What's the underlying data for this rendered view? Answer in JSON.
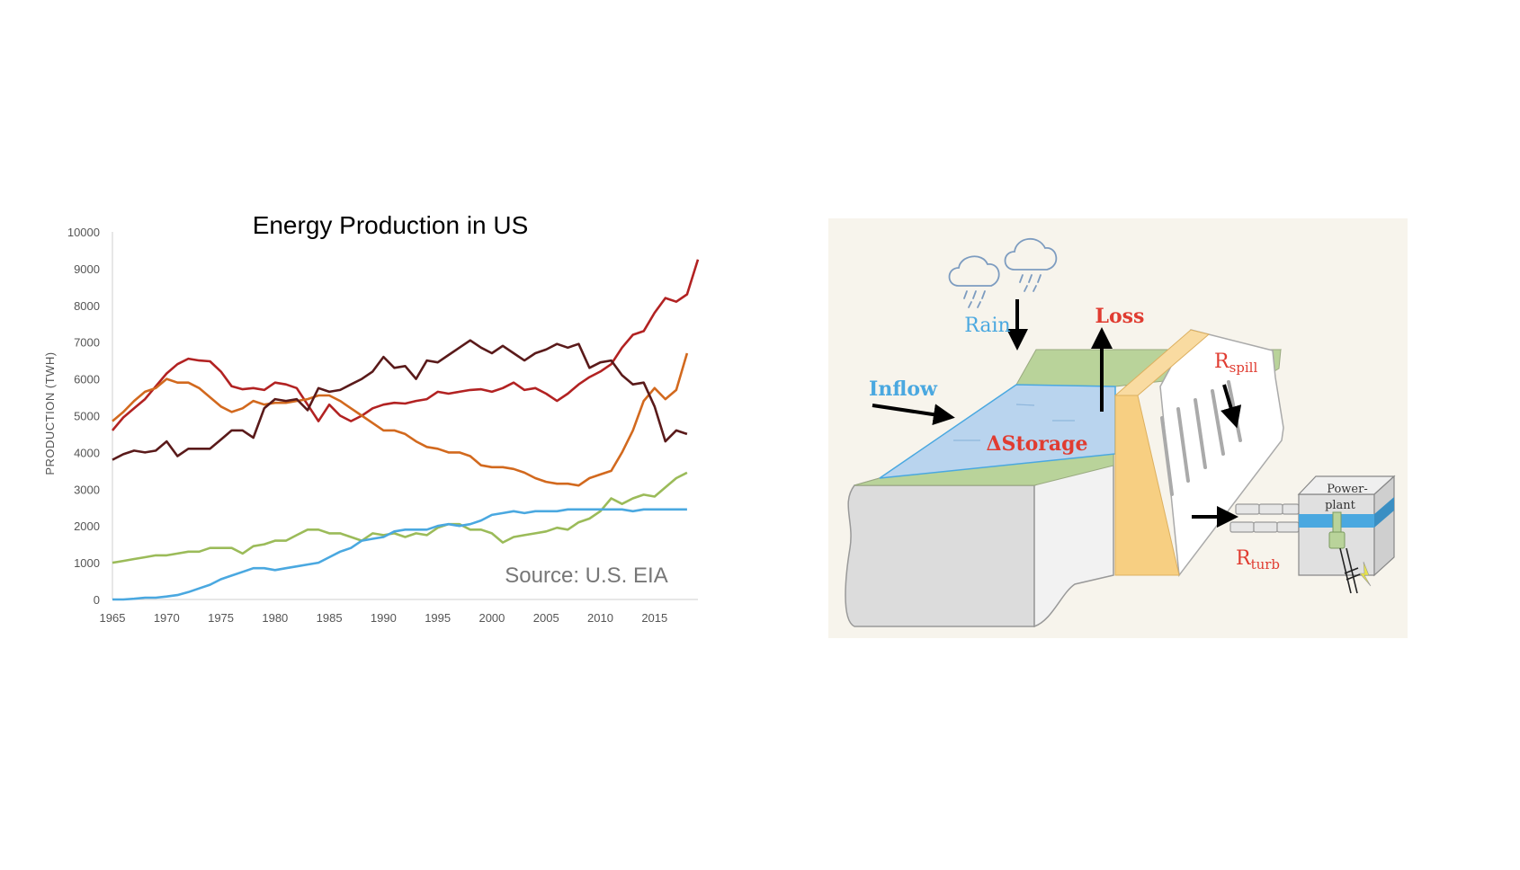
{
  "chart_data": {
    "type": "line",
    "title": "Energy Production in US",
    "ylabel": "PRODUCTION (TWH)",
    "xlabel": "",
    "source_note": "Source: U.S. EIA",
    "xlim": [
      1965,
      2018
    ],
    "ylim": [
      0,
      10000
    ],
    "x_ticks": [
      "1965",
      "1970",
      "1975",
      "1980",
      "1985",
      "1990",
      "1995",
      "2000",
      "2005",
      "2010",
      "2015"
    ],
    "y_ticks": [
      "0",
      "1000",
      "2000",
      "3000",
      "4000",
      "5000",
      "6000",
      "7000",
      "8000",
      "9000",
      "10000"
    ],
    "grid": false,
    "series": [
      {
        "color": "#b22222",
        "points": [
          [
            1965,
            4600
          ],
          [
            1966,
            4950
          ],
          [
            1967,
            5200
          ],
          [
            1968,
            5450
          ],
          [
            1969,
            5800
          ],
          [
            1970,
            6150
          ],
          [
            1971,
            6400
          ],
          [
            1972,
            6550
          ],
          [
            1973,
            6500
          ],
          [
            1974,
            6480
          ],
          [
            1975,
            6200
          ],
          [
            1976,
            5800
          ],
          [
            1977,
            5720
          ],
          [
            1978,
            5750
          ],
          [
            1979,
            5700
          ],
          [
            1980,
            5900
          ],
          [
            1981,
            5850
          ],
          [
            1982,
            5750
          ],
          [
            1983,
            5300
          ],
          [
            1984,
            4850
          ],
          [
            1985,
            5300
          ],
          [
            1986,
            5000
          ],
          [
            1987,
            4850
          ],
          [
            1988,
            5000
          ],
          [
            1989,
            5200
          ],
          [
            1990,
            5300
          ],
          [
            1991,
            5350
          ],
          [
            1992,
            5330
          ],
          [
            1993,
            5400
          ],
          [
            1994,
            5450
          ],
          [
            1995,
            5650
          ],
          [
            1996,
            5600
          ],
          [
            1997,
            5650
          ],
          [
            1998,
            5700
          ],
          [
            1999,
            5720
          ],
          [
            2000,
            5650
          ],
          [
            2001,
            5750
          ],
          [
            2002,
            5900
          ],
          [
            2003,
            5700
          ],
          [
            2004,
            5750
          ],
          [
            2005,
            5600
          ],
          [
            2006,
            5400
          ],
          [
            2007,
            5600
          ],
          [
            2008,
            5850
          ],
          [
            2009,
            6050
          ],
          [
            2010,
            6200
          ],
          [
            2011,
            6400
          ],
          [
            2012,
            6850
          ],
          [
            2013,
            7200
          ],
          [
            2014,
            7300
          ],
          [
            2015,
            7800
          ],
          [
            2016,
            8200
          ],
          [
            2017,
            8100
          ],
          [
            2018,
            8300
          ],
          [
            2019,
            9250
          ]
        ]
      },
      {
        "color": "#d2691e",
        "points": [
          [
            1965,
            4850
          ],
          [
            1966,
            5100
          ],
          [
            1967,
            5400
          ],
          [
            1968,
            5650
          ],
          [
            1969,
            5750
          ],
          [
            1970,
            6000
          ],
          [
            1971,
            5900
          ],
          [
            1972,
            5900
          ],
          [
            1973,
            5750
          ],
          [
            1974,
            5500
          ],
          [
            1975,
            5250
          ],
          [
            1976,
            5100
          ],
          [
            1977,
            5200
          ],
          [
            1978,
            5400
          ],
          [
            1979,
            5300
          ],
          [
            1980,
            5350
          ],
          [
            1981,
            5350
          ],
          [
            1982,
            5400
          ],
          [
            1983,
            5450
          ],
          [
            1984,
            5550
          ],
          [
            1985,
            5550
          ],
          [
            1986,
            5400
          ],
          [
            1987,
            5200
          ],
          [
            1988,
            5000
          ],
          [
            1989,
            4800
          ],
          [
            1990,
            4600
          ],
          [
            1991,
            4600
          ],
          [
            1992,
            4500
          ],
          [
            1993,
            4300
          ],
          [
            1994,
            4150
          ],
          [
            1995,
            4100
          ],
          [
            1996,
            4000
          ],
          [
            1997,
            4000
          ],
          [
            1998,
            3900
          ],
          [
            1999,
            3650
          ],
          [
            2000,
            3600
          ],
          [
            2001,
            3600
          ],
          [
            2002,
            3550
          ],
          [
            2003,
            3450
          ],
          [
            2004,
            3300
          ],
          [
            2005,
            3200
          ],
          [
            2006,
            3150
          ],
          [
            2007,
            3150
          ],
          [
            2008,
            3100
          ],
          [
            2009,
            3300
          ],
          [
            2010,
            3400
          ],
          [
            2011,
            3500
          ],
          [
            2012,
            4000
          ],
          [
            2013,
            4600
          ],
          [
            2014,
            5400
          ],
          [
            2015,
            5750
          ],
          [
            2016,
            5450
          ],
          [
            2017,
            5700
          ],
          [
            2018,
            6700
          ]
        ]
      },
      {
        "color": "#5a1a1a",
        "points": [
          [
            1965,
            3800
          ],
          [
            1966,
            3950
          ],
          [
            1967,
            4050
          ],
          [
            1968,
            4000
          ],
          [
            1969,
            4050
          ],
          [
            1970,
            4300
          ],
          [
            1971,
            3900
          ],
          [
            1972,
            4100
          ],
          [
            1973,
            4100
          ],
          [
            1974,
            4100
          ],
          [
            1975,
            4350
          ],
          [
            1976,
            4600
          ],
          [
            1977,
            4600
          ],
          [
            1978,
            4400
          ],
          [
            1979,
            5200
          ],
          [
            1980,
            5450
          ],
          [
            1981,
            5400
          ],
          [
            1982,
            5450
          ],
          [
            1983,
            5150
          ],
          [
            1984,
            5750
          ],
          [
            1985,
            5650
          ],
          [
            1986,
            5700
          ],
          [
            1987,
            5850
          ],
          [
            1988,
            6000
          ],
          [
            1989,
            6200
          ],
          [
            1990,
            6600
          ],
          [
            1991,
            6300
          ],
          [
            1992,
            6350
          ],
          [
            1993,
            6000
          ],
          [
            1994,
            6500
          ],
          [
            1995,
            6450
          ],
          [
            1996,
            6650
          ],
          [
            1997,
            6850
          ],
          [
            1998,
            7050
          ],
          [
            1999,
            6850
          ],
          [
            2000,
            6700
          ],
          [
            2001,
            6900
          ],
          [
            2002,
            6700
          ],
          [
            2003,
            6500
          ],
          [
            2004,
            6700
          ],
          [
            2005,
            6800
          ],
          [
            2006,
            6950
          ],
          [
            2007,
            6850
          ],
          [
            2008,
            6950
          ],
          [
            2009,
            6300
          ],
          [
            2010,
            6450
          ],
          [
            2011,
            6500
          ],
          [
            2012,
            6100
          ],
          [
            2013,
            5850
          ],
          [
            2014,
            5900
          ],
          [
            2015,
            5250
          ],
          [
            2016,
            4300
          ],
          [
            2017,
            4600
          ],
          [
            2018,
            4500
          ]
        ]
      },
      {
        "color": "#9bbb59",
        "points": [
          [
            1965,
            1000
          ],
          [
            1966,
            1050
          ],
          [
            1967,
            1100
          ],
          [
            1968,
            1150
          ],
          [
            1969,
            1200
          ],
          [
            1970,
            1200
          ],
          [
            1971,
            1250
          ],
          [
            1972,
            1300
          ],
          [
            1973,
            1300
          ],
          [
            1974,
            1400
          ],
          [
            1975,
            1400
          ],
          [
            1976,
            1400
          ],
          [
            1977,
            1250
          ],
          [
            1978,
            1450
          ],
          [
            1979,
            1500
          ],
          [
            1980,
            1600
          ],
          [
            1981,
            1600
          ],
          [
            1982,
            1750
          ],
          [
            1983,
            1900
          ],
          [
            1984,
            1900
          ],
          [
            1985,
            1800
          ],
          [
            1986,
            1800
          ],
          [
            1987,
            1700
          ],
          [
            1988,
            1600
          ],
          [
            1989,
            1800
          ],
          [
            1990,
            1750
          ],
          [
            1991,
            1800
          ],
          [
            1992,
            1700
          ],
          [
            1993,
            1800
          ],
          [
            1994,
            1750
          ],
          [
            1995,
            1950
          ],
          [
            1996,
            2050
          ],
          [
            1997,
            2050
          ],
          [
            1998,
            1900
          ],
          [
            1999,
            1900
          ],
          [
            2000,
            1800
          ],
          [
            2001,
            1550
          ],
          [
            2002,
            1700
          ],
          [
            2003,
            1750
          ],
          [
            2004,
            1800
          ],
          [
            2005,
            1850
          ],
          [
            2006,
            1950
          ],
          [
            2007,
            1900
          ],
          [
            2008,
            2100
          ],
          [
            2009,
            2200
          ],
          [
            2010,
            2400
          ],
          [
            2011,
            2750
          ],
          [
            2012,
            2600
          ],
          [
            2013,
            2750
          ],
          [
            2014,
            2850
          ],
          [
            2015,
            2800
          ],
          [
            2016,
            3050
          ],
          [
            2017,
            3300
          ],
          [
            2018,
            3450
          ]
        ]
      },
      {
        "color": "#4aa8e0",
        "points": [
          [
            1965,
            0
          ],
          [
            1966,
            0
          ],
          [
            1967,
            20
          ],
          [
            1968,
            50
          ],
          [
            1969,
            50
          ],
          [
            1970,
            80
          ],
          [
            1971,
            120
          ],
          [
            1972,
            200
          ],
          [
            1973,
            300
          ],
          [
            1974,
            400
          ],
          [
            1975,
            550
          ],
          [
            1976,
            650
          ],
          [
            1977,
            750
          ],
          [
            1978,
            850
          ],
          [
            1979,
            850
          ],
          [
            1980,
            800
          ],
          [
            1981,
            850
          ],
          [
            1982,
            900
          ],
          [
            1983,
            950
          ],
          [
            1984,
            1000
          ],
          [
            1985,
            1150
          ],
          [
            1986,
            1300
          ],
          [
            1987,
            1400
          ],
          [
            1988,
            1600
          ],
          [
            1989,
            1650
          ],
          [
            1990,
            1700
          ],
          [
            1991,
            1850
          ],
          [
            1992,
            1900
          ],
          [
            1993,
            1900
          ],
          [
            1994,
            1900
          ],
          [
            1995,
            2000
          ],
          [
            1996,
            2050
          ],
          [
            1997,
            2000
          ],
          [
            1998,
            2050
          ],
          [
            1999,
            2150
          ],
          [
            2000,
            2300
          ],
          [
            2001,
            2350
          ],
          [
            2002,
            2400
          ],
          [
            2003,
            2350
          ],
          [
            2004,
            2400
          ],
          [
            2005,
            2400
          ],
          [
            2006,
            2400
          ],
          [
            2007,
            2450
          ],
          [
            2008,
            2450
          ],
          [
            2009,
            2450
          ],
          [
            2010,
            2450
          ],
          [
            2011,
            2450
          ],
          [
            2012,
            2450
          ],
          [
            2013,
            2400
          ],
          [
            2014,
            2450
          ],
          [
            2015,
            2450
          ],
          [
            2016,
            2450
          ],
          [
            2017,
            2450
          ],
          [
            2018,
            2450
          ]
        ]
      }
    ]
  },
  "diagram": {
    "labels": {
      "rain": "Rain",
      "loss": "Loss",
      "inflow": "Inflow",
      "storage": "ΔStorage",
      "r_spill": "R",
      "r_spill_sub": "spill",
      "r_turb": "R",
      "r_turb_sub": "turb",
      "powerplant_line1": "Power-",
      "powerplant_line2": "plant"
    },
    "colors": {
      "blue_label": "#4aa8e0",
      "red_label": "#e03c31",
      "background": "#f7f4ec",
      "water": "#b9d4ee",
      "grass": "#b9d39a",
      "dam": "#f7cf82"
    }
  }
}
